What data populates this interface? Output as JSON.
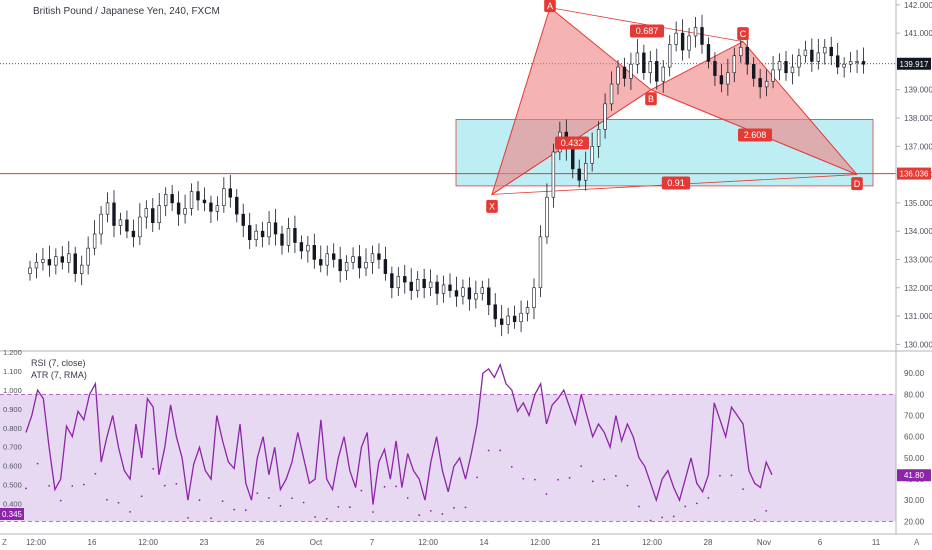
{
  "header": {
    "symbol_title": "British Pound / Japanese Yen, 240, FXCM"
  },
  "indicators": {
    "rsi_label": "RSI (7, close)",
    "atr_label": "ATR (7, RMA)"
  },
  "axis_corner": {
    "left": "Z",
    "right": "A"
  },
  "colors": {
    "candle": "#131722",
    "pattern_fill": "#f08080",
    "pattern_stroke": "#e53935",
    "zone_fill": "#b2ebf2",
    "zone_stroke": "#e53935",
    "rsi_line": "#8e24aa",
    "rsi_band": "#e1d0ef",
    "label_bg": "#e53935",
    "price_tag": "#131722"
  },
  "chart_data": [
    {
      "type": "candlestick",
      "title": "British Pound / Japanese Yen, 240, FXCM",
      "ylim": [
        129.8,
        142.1
      ],
      "y_ticks": [
        "142.000",
        "141.000",
        "139.000",
        "138.000",
        "137.000",
        "136.000",
        "135.000",
        "134.000",
        "133.000",
        "132.000",
        "131.000",
        "130.000"
      ],
      "x_ticks": [
        "12:00",
        "16",
        "12:00",
        "23",
        "26",
        "Oct",
        "7",
        "12:00",
        "14",
        "12:00",
        "21",
        "12:00",
        "28",
        "Nov",
        "6",
        "11"
      ],
      "closes": [
        132.7,
        132.9,
        133.0,
        132.8,
        133.1,
        132.9,
        133.2,
        132.5,
        132.8,
        133.4,
        133.9,
        134.6,
        135.0,
        134.2,
        134.4,
        134.0,
        133.8,
        134.5,
        134.8,
        134.3,
        134.9,
        135.3,
        135.0,
        134.6,
        134.8,
        135.4,
        135.1,
        135.0,
        134.7,
        134.9,
        135.5,
        135.2,
        134.6,
        134.2,
        133.7,
        134.0,
        133.8,
        134.3,
        133.9,
        133.5,
        134.1,
        133.6,
        133.3,
        133.5,
        133.0,
        132.8,
        133.2,
        133.0,
        132.6,
        132.9,
        133.1,
        132.7,
        132.9,
        133.2,
        133.0,
        132.5,
        132.0,
        132.4,
        132.2,
        131.9,
        132.3,
        132.0,
        132.2,
        131.8,
        132.1,
        131.9,
        131.7,
        132.0,
        131.6,
        131.8,
        132.0,
        131.4,
        130.9,
        130.7,
        131.0,
        130.8,
        131.1,
        131.3,
        132.0,
        133.8,
        135.2,
        136.8,
        137.5,
        136.9,
        136.2,
        135.8,
        136.4,
        137.0,
        137.6,
        138.5,
        139.2,
        139.8,
        139.4,
        139.9,
        140.3,
        139.6,
        140.0,
        139.3,
        139.8,
        140.6,
        141.0,
        140.4,
        140.9,
        141.2,
        140.6,
        140.0,
        139.5,
        139.2,
        139.6,
        140.2,
        140.5,
        139.9,
        139.4,
        139.1,
        139.3,
        139.7,
        140.0,
        139.6,
        139.8,
        140.2,
        140.4,
        140.0,
        140.3,
        140.5,
        140.2,
        139.8,
        139.9,
        140.0,
        140.0,
        139.9
      ]
    },
    {
      "type": "labeled-points",
      "name": "XABCD pattern",
      "points": [
        {
          "label": "X",
          "y": 135.3
        },
        {
          "label": "A",
          "y": 141.9
        },
        {
          "label": "B",
          "y": 139.0
        },
        {
          "label": "C",
          "y": 140.7
        },
        {
          "label": "D",
          "y": 136.0
        }
      ],
      "ratios": [
        "0.687",
        "0.432",
        "2.608",
        "0.91"
      ]
    },
    {
      "type": "price-marks",
      "current_price": "139.917",
      "current_price_value": 139.917,
      "horizontal_line": "136.036",
      "horizontal_line_value": 136.036,
      "zone": {
        "top": 137.95,
        "bottom": 135.6
      }
    },
    {
      "type": "line",
      "name": "RSI (7, close)",
      "ylim": [
        15,
        100
      ],
      "y_ticks": [
        "90.00",
        "80.00",
        "70.00",
        "60.00",
        "50.00",
        "40.00",
        "30.00",
        "20.00"
      ],
      "band": [
        20,
        80
      ],
      "current": "41.80",
      "current_value": 41.8,
      "values": [
        62,
        70,
        82,
        78,
        55,
        35,
        40,
        65,
        60,
        72,
        68,
        80,
        85,
        48,
        60,
        70,
        55,
        44,
        40,
        66,
        50,
        78,
        74,
        42,
        55,
        75,
        60,
        50,
        30,
        47,
        55,
        44,
        40,
        70,
        58,
        48,
        45,
        66,
        38,
        30,
        50,
        60,
        42,
        55,
        35,
        40,
        48,
        62,
        50,
        38,
        40,
        68,
        40,
        35,
        50,
        60,
        44,
        36,
        55,
        62,
        28,
        48,
        54,
        40,
        58,
        36,
        52,
        44,
        40,
        30,
        48,
        60,
        44,
        34,
        46,
        50,
        40,
        52,
        66,
        90,
        92,
        88,
        94,
        85,
        82,
        72,
        76,
        70,
        80,
        85,
        66,
        75,
        78,
        82,
        74,
        66,
        80,
        70,
        60,
        66,
        62,
        55,
        70,
        58,
        66,
        60,
        50,
        46,
        38,
        30,
        40,
        44,
        36,
        30,
        40,
        50,
        38,
        34,
        42,
        76,
        68,
        60,
        74,
        70,
        66,
        44,
        38,
        36,
        48,
        42
      ]
    },
    {
      "type": "scatter",
      "name": "ATR (7, RMA)",
      "ylim": [
        0.25,
        1.2
      ],
      "y_ticks": [
        "1.200",
        "1.100",
        "1.000",
        "0.900",
        "0.800",
        "0.700",
        "0.600",
        "0.500",
        "0.400"
      ],
      "current": "0.345",
      "current_value": 0.345
    }
  ]
}
